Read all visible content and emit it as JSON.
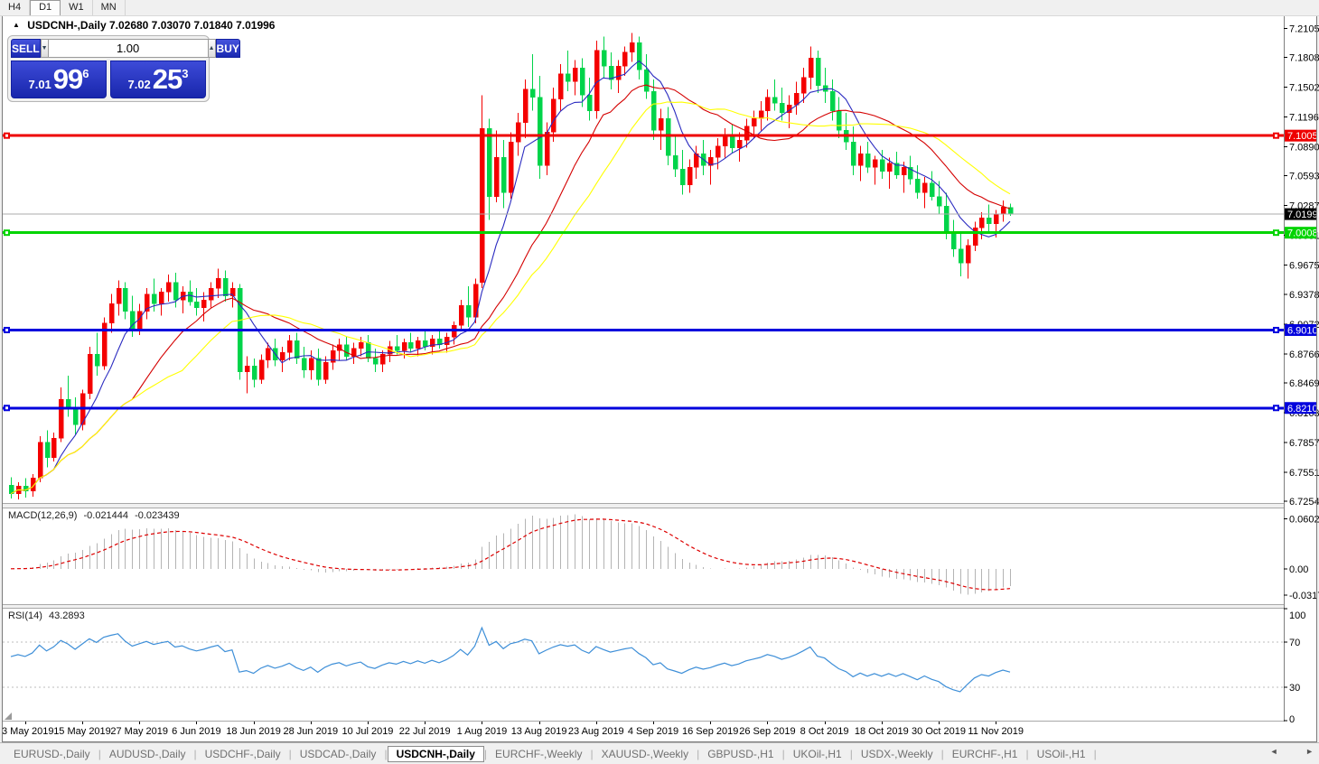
{
  "toolbar": {
    "timeframes": [
      "H4",
      "D1",
      "W1",
      "MN"
    ],
    "active": "D1"
  },
  "chart": {
    "symbol_title": "USDCNH-,Daily",
    "ohlc_text": "7.02680 7.03070 7.01840 7.01996",
    "trade_panel": {
      "sell_label": "SELL",
      "buy_label": "BUY",
      "volume": "1.00",
      "bid": {
        "prefix": "7.01",
        "big": "99",
        "sup": "6"
      },
      "ask": {
        "prefix": "7.02",
        "big": "25",
        "sup": "3"
      }
    }
  },
  "icons": {
    "symbol_arrow": "▲",
    "spinner_down": "▼",
    "spinner_up": "▲",
    "tab_scroll_left": "◄",
    "tab_scroll_right": "►"
  },
  "tabs": {
    "items": [
      "EURUSD-,Daily",
      "AUDUSD-,Daily",
      "USDCHF-,Daily",
      "USDCAD-,Daily",
      "USDCNH-,Daily",
      "EURCHF-,Weekly",
      "XAUUSD-,Weekly",
      "GBPUSD-,H1",
      "UKOil-,H1",
      "USDX-,Weekly",
      "EURCHF-,H1",
      "USOil-,H1"
    ],
    "active_index": 4
  },
  "chart_data": {
    "type": "candlestick",
    "symbol": "USDCNH-",
    "timeframe": "Daily",
    "colors": {
      "bull": "#f40000",
      "bear": "#00d44a",
      "ma_fast": "#2a2ac0",
      "ma_medium": "#d40000",
      "ma_slow": "#ffff00",
      "hline_red": "#ee0000",
      "hline_green": "#00d400",
      "hline_blue": "#0202dd",
      "current_line": "#ababab",
      "macd_bar": "#b4b4b4",
      "macd_signal": "#dd0000",
      "rsi_line": "#3e8fd8",
      "rsi_level": "#bcbcbc"
    },
    "price_ticks": [
      "7.21050",
      "7.18080",
      "7.15020",
      "7.11960",
      "7.08900",
      "7.05930",
      "7.02870",
      "6.99810",
      "6.96750",
      "6.93780",
      "6.90720",
      "6.87660",
      "6.84690",
      "6.81630",
      "6.78570",
      "6.75510",
      "6.72540"
    ],
    "hlines": [
      {
        "label": "7.10051",
        "value": 7.10051,
        "color": "#ee0000",
        "text_color": "#ffffff"
      },
      {
        "label": "7.00089",
        "value": 7.00089,
        "color": "#00d400",
        "text_color": "#ffffff"
      },
      {
        "label": "6.90100",
        "value": 6.901,
        "color": "#0202dd",
        "text_color": "#ffffff"
      },
      {
        "label": "6.82103",
        "value": 6.82103,
        "color": "#0202dd",
        "text_color": "#ffffff"
      }
    ],
    "current_price": {
      "label": "7.01996",
      "value": 7.01996
    },
    "ma_periods": {
      "fast": 7,
      "medium": 18,
      "slow": 25
    },
    "macd": {
      "label": "MACD(12,26,9)",
      "value": "-0.021444",
      "signal_value": "-0.023439",
      "fast": 12,
      "slow": 26,
      "signal": 9,
      "axis_labels": [
        {
          "text": "0.060273",
          "value": 0.060273
        },
        {
          "text": "0.00",
          "value": 0
        },
        {
          "text": "-0.031725",
          "value": -0.031725
        }
      ]
    },
    "rsi": {
      "label": "RSI(14)",
      "value_text": "43.2893",
      "period": 14,
      "axis_labels": [
        {
          "text": "100",
          "value": 100
        },
        {
          "text": "70",
          "value": 70
        },
        {
          "text": "30",
          "value": 30
        },
        {
          "text": "0",
          "value": 0
        }
      ],
      "levels": [
        70,
        30
      ]
    },
    "date_ticks": {
      "start_index": 2,
      "step": 8,
      "labels": [
        "3 May 2019",
        "15 May 2019",
        "27 May 2019",
        "6 Jun 2019",
        "18 Jun 2019",
        "28 Jun 2019",
        "10 Jul 2019",
        "22 Jul 2019",
        "1 Aug 2019",
        "13 Aug 2019",
        "23 Aug 2019",
        "4 Sep 2019",
        "16 Sep 2019",
        "26 Sep 2019",
        "8 Oct 2019",
        "18 Oct 2019",
        "30 Oct 2019",
        "11 Nov 2019"
      ]
    },
    "ohlc": [
      [
        6.742,
        6.75,
        6.728,
        6.733
      ],
      [
        6.733,
        6.745,
        6.727,
        6.741
      ],
      [
        6.741,
        6.749,
        6.729,
        6.736
      ],
      [
        6.736,
        6.753,
        6.73,
        6.749
      ],
      [
        6.749,
        6.792,
        6.745,
        6.786
      ],
      [
        6.786,
        6.798,
        6.76,
        6.77
      ],
      [
        6.77,
        6.796,
        6.766,
        6.79
      ],
      [
        6.79,
        6.842,
        6.786,
        6.83
      ],
      [
        6.83,
        6.854,
        6.812,
        6.82
      ],
      [
        6.82,
        6.832,
        6.794,
        6.804
      ],
      [
        6.804,
        6.84,
        6.798,
        6.836
      ],
      [
        6.836,
        6.884,
        6.83,
        6.876
      ],
      [
        6.876,
        6.898,
        6.854,
        6.864
      ],
      [
        6.864,
        6.914,
        6.86,
        6.908
      ],
      [
        6.908,
        6.938,
        6.898,
        6.928
      ],
      [
        6.928,
        6.952,
        6.916,
        6.944
      ],
      [
        6.944,
        6.95,
        6.912,
        6.92
      ],
      [
        6.92,
        6.936,
        6.894,
        6.902
      ],
      [
        6.902,
        6.928,
        6.896,
        6.92
      ],
      [
        6.92,
        6.944,
        6.912,
        6.938
      ],
      [
        6.938,
        6.954,
        6.92,
        6.928
      ],
      [
        6.928,
        6.944,
        6.916,
        6.94
      ],
      [
        6.94,
        6.958,
        6.93,
        6.95
      ],
      [
        6.95,
        6.96,
        6.924,
        6.932
      ],
      [
        6.932,
        6.946,
        6.918,
        6.94
      ],
      [
        6.94,
        6.952,
        6.926,
        6.93
      ],
      [
        6.93,
        6.944,
        6.916,
        6.924
      ],
      [
        6.924,
        6.94,
        6.91,
        6.932
      ],
      [
        6.932,
        6.95,
        6.924,
        6.944
      ],
      [
        6.944,
        6.964,
        6.934,
        6.954
      ],
      [
        6.954,
        6.962,
        6.93,
        6.936
      ],
      [
        6.936,
        6.95,
        6.924,
        6.944
      ],
      [
        6.944,
        6.948,
        6.85,
        6.858
      ],
      [
        6.858,
        6.874,
        6.836,
        6.864
      ],
      [
        6.864,
        6.872,
        6.842,
        6.85
      ],
      [
        6.85,
        6.876,
        6.846,
        6.87
      ],
      [
        6.87,
        6.888,
        6.862,
        6.882
      ],
      [
        6.882,
        6.892,
        6.864,
        6.87
      ],
      [
        6.87,
        6.884,
        6.858,
        6.878
      ],
      [
        6.878,
        6.896,
        6.87,
        6.89
      ],
      [
        6.89,
        6.898,
        6.866,
        6.872
      ],
      [
        6.872,
        6.884,
        6.852,
        6.86
      ],
      [
        6.86,
        6.88,
        6.85,
        6.872
      ],
      [
        6.872,
        6.882,
        6.844,
        6.85
      ],
      [
        6.85,
        6.874,
        6.846,
        6.868
      ],
      [
        6.868,
        6.886,
        6.86,
        6.88
      ],
      [
        6.88,
        6.892,
        6.87,
        6.886
      ],
      [
        6.886,
        6.894,
        6.87,
        6.874
      ],
      [
        6.874,
        6.888,
        6.866,
        6.882
      ],
      [
        6.882,
        6.894,
        6.874,
        6.888
      ],
      [
        6.888,
        6.896,
        6.868,
        6.872
      ],
      [
        6.872,
        6.882,
        6.858,
        6.866
      ],
      [
        6.866,
        6.88,
        6.858,
        6.876
      ],
      [
        6.876,
        6.89,
        6.868,
        6.884
      ],
      [
        6.884,
        6.896,
        6.876,
        6.88
      ],
      [
        6.88,
        6.892,
        6.872,
        6.888
      ],
      [
        6.888,
        6.898,
        6.878,
        6.882
      ],
      [
        6.882,
        6.894,
        6.874,
        6.89
      ],
      [
        6.89,
        6.9,
        6.88,
        6.884
      ],
      [
        6.884,
        6.896,
        6.876,
        6.892
      ],
      [
        6.892,
        6.902,
        6.882,
        6.886
      ],
      [
        6.886,
        6.898,
        6.878,
        6.894
      ],
      [
        6.894,
        6.91,
        6.886,
        6.906
      ],
      [
        6.906,
        6.932,
        6.9,
        6.926
      ],
      [
        6.926,
        6.946,
        6.904,
        6.914
      ],
      [
        6.914,
        6.954,
        6.908,
        6.948
      ],
      [
        6.95,
        7.142,
        6.944,
        7.108
      ],
      [
        7.108,
        7.118,
        7.014,
        7.038
      ],
      [
        7.038,
        7.106,
        7.032,
        7.078
      ],
      [
        7.078,
        7.096,
        7.026,
        7.042
      ],
      [
        7.042,
        7.104,
        7.036,
        7.094
      ],
      [
        7.094,
        7.124,
        7.08,
        7.114
      ],
      [
        7.114,
        7.158,
        7.098,
        7.148
      ],
      [
        7.148,
        7.184,
        7.126,
        7.14
      ],
      [
        7.14,
        7.162,
        7.056,
        7.07
      ],
      [
        7.07,
        7.114,
        7.06,
        7.104
      ],
      [
        7.104,
        7.15,
        7.094,
        7.138
      ],
      [
        7.138,
        7.174,
        7.126,
        7.164
      ],
      [
        7.164,
        7.188,
        7.146,
        7.156
      ],
      [
        7.156,
        7.178,
        7.142,
        7.17
      ],
      [
        7.17,
        7.18,
        7.13,
        7.142
      ],
      [
        7.142,
        7.16,
        7.116,
        7.126
      ],
      [
        7.126,
        7.198,
        7.118,
        7.188
      ],
      [
        7.188,
        7.202,
        7.16,
        7.172
      ],
      [
        7.172,
        7.186,
        7.148,
        7.158
      ],
      [
        7.158,
        7.178,
        7.144,
        7.172
      ],
      [
        7.172,
        7.192,
        7.162,
        7.186
      ],
      [
        7.186,
        7.206,
        7.176,
        7.196
      ],
      [
        7.196,
        7.202,
        7.158,
        7.168
      ],
      [
        7.168,
        7.184,
        7.138,
        7.146
      ],
      [
        7.146,
        7.158,
        7.096,
        7.106
      ],
      [
        7.106,
        7.128,
        7.086,
        7.118
      ],
      [
        7.118,
        7.13,
        7.07,
        7.08
      ],
      [
        7.08,
        7.1,
        7.058,
        7.066
      ],
      [
        7.066,
        7.086,
        7.04,
        7.05
      ],
      [
        7.05,
        7.076,
        7.042,
        7.068
      ],
      [
        7.068,
        7.09,
        7.056,
        7.082
      ],
      [
        7.082,
        7.096,
        7.06,
        7.07
      ],
      [
        7.07,
        7.086,
        7.05,
        7.078
      ],
      [
        7.078,
        7.098,
        7.066,
        7.09
      ],
      [
        7.09,
        7.108,
        7.078,
        7.1
      ],
      [
        7.1,
        7.112,
        7.082,
        7.088
      ],
      [
        7.088,
        7.104,
        7.074,
        7.096
      ],
      [
        7.096,
        7.118,
        7.088,
        7.11
      ],
      [
        7.11,
        7.126,
        7.098,
        7.118
      ],
      [
        7.118,
        7.136,
        7.106,
        7.126
      ],
      [
        7.126,
        7.148,
        7.116,
        7.14
      ],
      [
        7.14,
        7.158,
        7.126,
        7.134
      ],
      [
        7.134,
        7.15,
        7.116,
        7.124
      ],
      [
        7.124,
        7.142,
        7.108,
        7.132
      ],
      [
        7.132,
        7.156,
        7.122,
        7.144
      ],
      [
        7.144,
        7.17,
        7.134,
        7.16
      ],
      [
        7.16,
        7.192,
        7.148,
        7.18
      ],
      [
        7.18,
        7.188,
        7.144,
        7.152
      ],
      [
        7.152,
        7.17,
        7.134,
        7.146
      ],
      [
        7.146,
        7.158,
        7.116,
        7.126
      ],
      [
        7.126,
        7.14,
        7.098,
        7.106
      ],
      [
        7.106,
        7.124,
        7.086,
        7.094
      ],
      [
        7.094,
        7.11,
        7.06,
        7.07
      ],
      [
        7.07,
        7.09,
        7.054,
        7.082
      ],
      [
        7.082,
        7.094,
        7.062,
        7.068
      ],
      [
        7.068,
        7.08,
        7.05,
        7.076
      ],
      [
        7.076,
        7.086,
        7.056,
        7.064
      ],
      [
        7.064,
        7.078,
        7.046,
        7.072
      ],
      [
        7.072,
        7.084,
        7.056,
        7.06
      ],
      [
        7.06,
        7.074,
        7.042,
        7.068
      ],
      [
        7.068,
        7.08,
        7.05,
        7.056
      ],
      [
        7.056,
        7.07,
        7.036,
        7.042
      ],
      [
        7.042,
        7.058,
        7.026,
        7.052
      ],
      [
        7.052,
        7.064,
        7.034,
        7.038
      ],
      [
        7.038,
        7.054,
        7.02,
        7.028
      ],
      [
        7.028,
        7.042,
        6.994,
        7.002
      ],
      [
        7.002,
        7.014,
        6.976,
        6.984
      ],
      [
        6.984,
        7.0,
        6.956,
        6.97
      ],
      [
        6.97,
        6.994,
        6.954,
        6.988
      ],
      [
        6.988,
        7.012,
        6.982,
        7.006
      ],
      [
        7.006,
        7.022,
        6.994,
        7.016
      ],
      [
        7.016,
        7.03,
        7.002,
        7.01
      ],
      [
        7.01,
        7.024,
        6.996,
        7.02
      ],
      [
        7.02,
        7.034,
        7.012,
        7.027
      ],
      [
        7.0268,
        7.0307,
        7.0184,
        7.02
      ]
    ]
  }
}
